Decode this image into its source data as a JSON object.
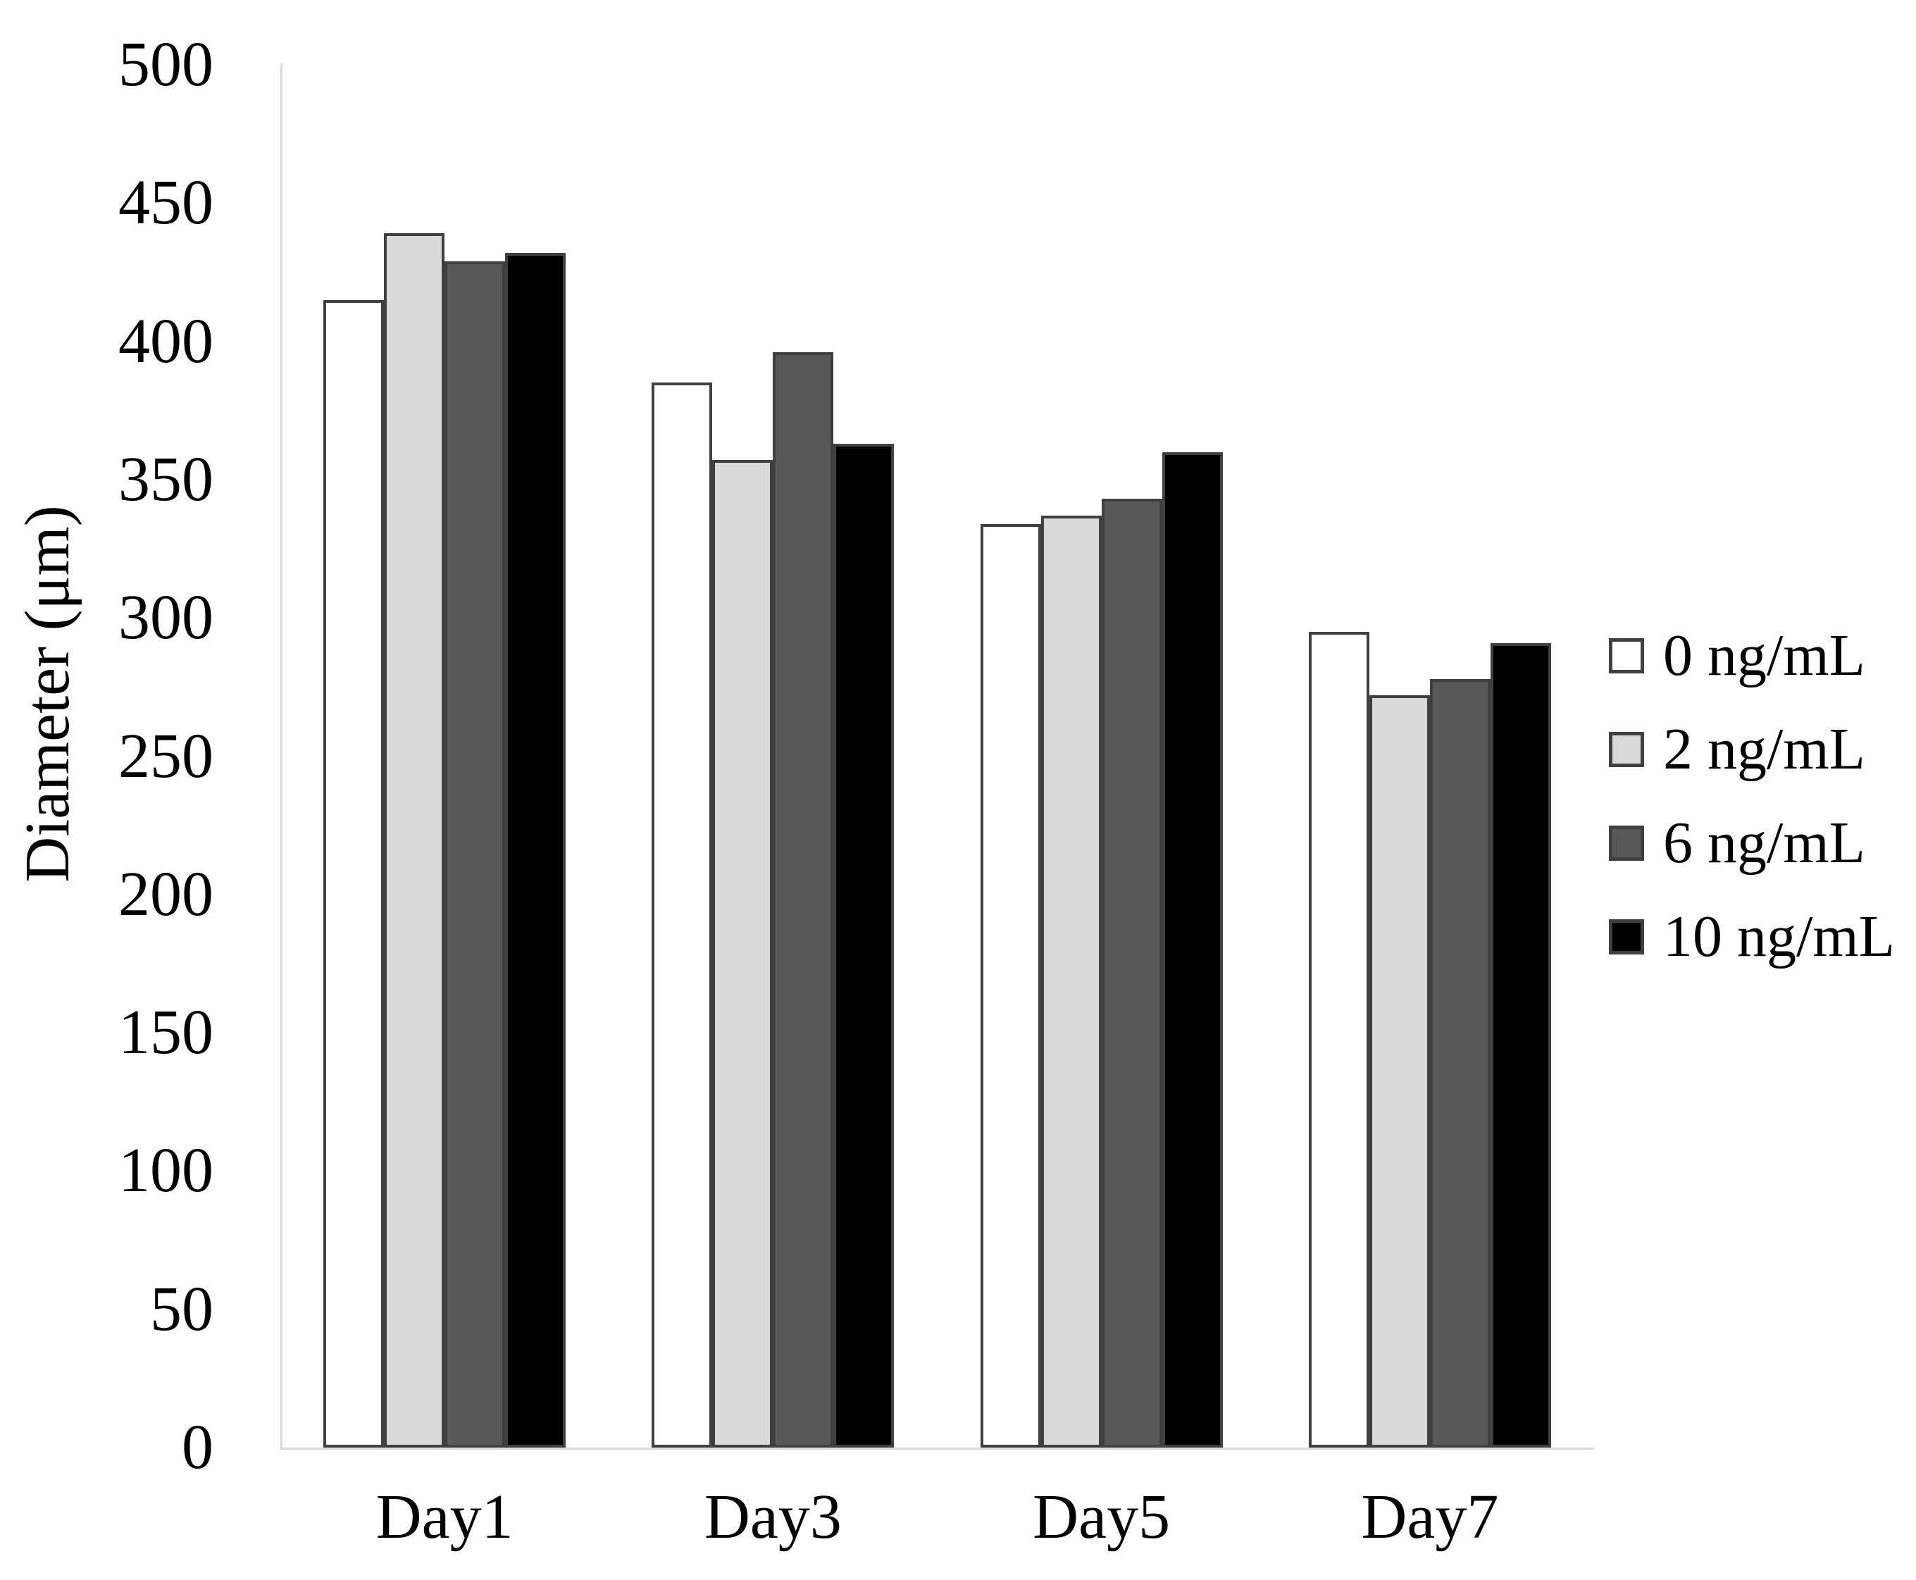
{
  "chart_data": {
    "type": "bar",
    "title": "",
    "xlabel": "",
    "ylabel": "Diameter (μm)",
    "ylim": [
      0,
      500
    ],
    "ytick_step": 50,
    "yticks": [
      0,
      50,
      100,
      150,
      200,
      250,
      300,
      350,
      400,
      450,
      500
    ],
    "categories": [
      "Day1",
      "Day3",
      "Day5",
      "Day7"
    ],
    "series": [
      {
        "name": "0 ng/mL",
        "fill": "#ffffff",
        "values": [
          415,
          385,
          334,
          295
        ]
      },
      {
        "name": "2 ng/mL",
        "fill": "#d9d9d9",
        "values": [
          439,
          357,
          337,
          272
        ]
      },
      {
        "name": "6 ng/mL",
        "fill": "#595959",
        "values": [
          429,
          396,
          343,
          278
        ]
      },
      {
        "name": "10 ng/mL",
        "fill": "#000000",
        "values": [
          432,
          363,
          360,
          291
        ]
      }
    ],
    "legend_position": "right",
    "grid": false
  },
  "colors": {
    "axis_line": "#d9d9d9",
    "bar_border": "#404040",
    "text": "#000000",
    "background": "#ffffff"
  }
}
